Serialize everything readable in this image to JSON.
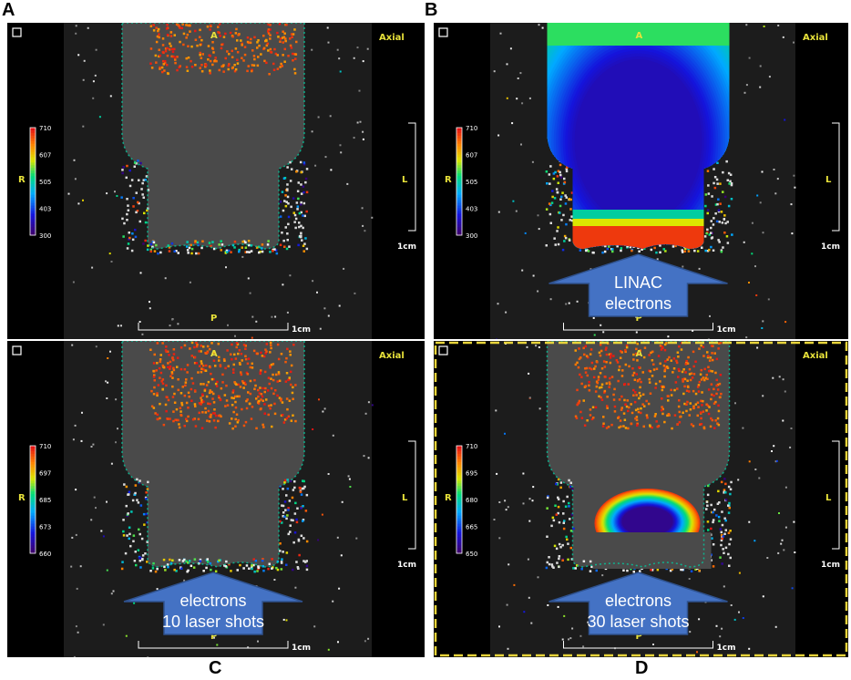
{
  "panel_letters": {
    "a": "A",
    "b": "B",
    "c": "C",
    "d": "D"
  },
  "orientation": {
    "anterior": "A",
    "posterior": "P",
    "left": "L",
    "right": "R",
    "view": "Axial"
  },
  "scale_bar": {
    "label": "1cm"
  },
  "colors": {
    "magnitude_bg": "#4a4a4a",
    "sidebar": "#000000",
    "frame": "#141414",
    "highlight_dash": "#e8d43a",
    "arrow_fill": "#4472c4",
    "label_yellow": "#e8e23a"
  },
  "panels": [
    {
      "id": "A",
      "colorbar": {
        "min": "300",
        "max": "710",
        "ticks": [
          "710",
          "607",
          "505",
          "403",
          "300"
        ]
      }
    },
    {
      "id": "B",
      "colorbar": {
        "min": "300",
        "max": "710",
        "ticks": [
          "710",
          "607",
          "505",
          "403",
          "300"
        ]
      },
      "arrow": {
        "line1": "LINAC",
        "line2": "electrons"
      }
    },
    {
      "id": "C",
      "colorbar": {
        "min": "660",
        "max": "710",
        "ticks": [
          "710",
          "697",
          "685",
          "673",
          "660"
        ]
      },
      "arrow": {
        "line1": "electrons",
        "line2": "10 laser shots"
      }
    },
    {
      "id": "D",
      "colorbar": {
        "min": "650",
        "max": "710",
        "ticks": [
          "710",
          "695",
          "680",
          "665",
          "650"
        ]
      },
      "arrow": {
        "line1": "electrons",
        "line2": "30 laser shots"
      },
      "highlighted": true
    }
  ]
}
